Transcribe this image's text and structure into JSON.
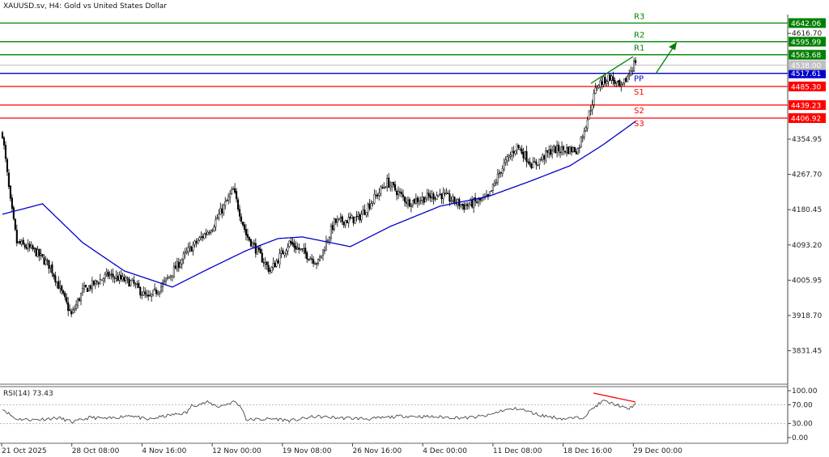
{
  "header": {
    "title": "XAUUSD.sv, H4:  Gold vs United States Dollar"
  },
  "colors": {
    "support": "#ff0000",
    "resistance": "#008000",
    "pivot": "#0000cc",
    "ma": "#0000cc",
    "candle": "#000000",
    "current_price": "#c0c0c0"
  },
  "chart_data": [
    {
      "type": "candlestick",
      "symbol": "XAUUSD.sv",
      "timeframe": "H4",
      "ylim": [
        3790,
        4665
      ],
      "price_ticks": [
        "4616.70",
        "4354.95",
        "4267.70",
        "4180.45",
        "4093.20",
        "4005.95",
        "3918.70",
        "3831.45"
      ],
      "time_ticks": [
        "21 Oct 2025",
        "28 Oct 08:00",
        "4 Nov 16:00",
        "12 Nov 00:00",
        "19 Nov 08:00",
        "26 Nov 16:00",
        "4 Dec 00:00",
        "11 Dec 08:00",
        "18 Dec 16:00",
        "29 Dec 00:00"
      ],
      "close_path_bar_price": [
        [
          0,
          4369
        ],
        [
          5,
          4199
        ],
        [
          9,
          4099
        ],
        [
          20,
          4079
        ],
        [
          30,
          4039
        ],
        [
          43,
          3919
        ],
        [
          50,
          3979
        ],
        [
          66,
          4019
        ],
        [
          81,
          3999
        ],
        [
          91,
          3959
        ],
        [
          101,
          3999
        ],
        [
          116,
          4079
        ],
        [
          131,
          4139
        ],
        [
          144,
          4229
        ],
        [
          152,
          4119
        ],
        [
          167,
          4029
        ],
        [
          179,
          4099
        ],
        [
          197,
          4049
        ],
        [
          207,
          4149
        ],
        [
          222,
          4159
        ],
        [
          240,
          4249
        ],
        [
          253,
          4199
        ],
        [
          273,
          4219
        ],
        [
          288,
          4189
        ],
        [
          303,
          4209
        ],
        [
          311,
          4279
        ],
        [
          321,
          4339
        ],
        [
          331,
          4289
        ],
        [
          343,
          4329
        ],
        [
          359,
          4329
        ],
        [
          366,
          4419
        ],
        [
          371,
          4489
        ],
        [
          379,
          4509
        ],
        [
          386,
          4479
        ],
        [
          395,
          4549
        ]
      ],
      "moving_average_path_bar_price": [
        [
          0,
          4169
        ],
        [
          25,
          4195
        ],
        [
          50,
          4099
        ],
        [
          76,
          4029
        ],
        [
          106,
          3989
        ],
        [
          126,
          4029
        ],
        [
          152,
          4079
        ],
        [
          172,
          4109
        ],
        [
          187,
          4113
        ],
        [
          217,
          4089
        ],
        [
          242,
          4139
        ],
        [
          273,
          4189
        ],
        [
          303,
          4213
        ],
        [
          328,
          4249
        ],
        [
          354,
          4289
        ],
        [
          374,
          4339
        ],
        [
          395,
          4399
        ]
      ],
      "current_price": "4538.00",
      "levels": [
        {
          "name": "R3",
          "value": "4642.06",
          "kind": "resistance"
        },
        {
          "name": "R2",
          "value": "4595.99",
          "kind": "resistance"
        },
        {
          "name": "R1",
          "value": "4563.68",
          "kind": "resistance"
        },
        {
          "name": "PP",
          "value": "4517.61",
          "kind": "pivot"
        },
        {
          "name": "S1",
          "value": "4485.30",
          "kind": "support"
        },
        {
          "name": "S2",
          "value": "4439.23",
          "kind": "support"
        },
        {
          "name": "S3",
          "value": "4406.92",
          "kind": "support"
        }
      ]
    },
    {
      "type": "line",
      "title": "RSI(14) 73.43",
      "ylim": [
        0,
        100
      ],
      "ticks": [
        "100.00",
        "70.00",
        "30.00",
        "0.00"
      ],
      "levels": [
        70,
        30
      ],
      "path_bar_value": [
        [
          0,
          62
        ],
        [
          8,
          40
        ],
        [
          20,
          38
        ],
        [
          35,
          42
        ],
        [
          44,
          33
        ],
        [
          55,
          43
        ],
        [
          66,
          40
        ],
        [
          80,
          48
        ],
        [
          90,
          38
        ],
        [
          105,
          48
        ],
        [
          115,
          53
        ],
        [
          118,
          68
        ],
        [
          128,
          75
        ],
        [
          135,
          66
        ],
        [
          145,
          77
        ],
        [
          150,
          60
        ],
        [
          152,
          38
        ],
        [
          170,
          40
        ],
        [
          180,
          36
        ],
        [
          195,
          45
        ],
        [
          210,
          42
        ],
        [
          230,
          40
        ],
        [
          250,
          46
        ],
        [
          270,
          44
        ],
        [
          290,
          42
        ],
        [
          303,
          47
        ],
        [
          312,
          58
        ],
        [
          322,
          62
        ],
        [
          335,
          48
        ],
        [
          350,
          40
        ],
        [
          362,
          43
        ],
        [
          370,
          67
        ],
        [
          375,
          78
        ],
        [
          385,
          68
        ],
        [
          390,
          60
        ],
        [
          395,
          72
        ]
      ]
    }
  ]
}
